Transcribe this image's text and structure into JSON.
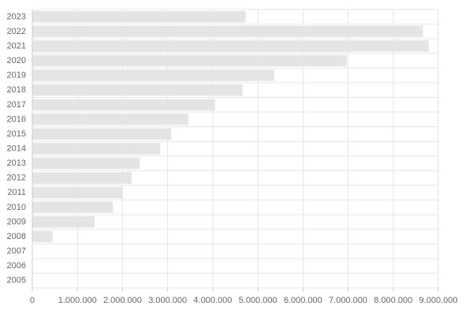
{
  "chart_data": {
    "type": "bar",
    "orientation": "horizontal",
    "categories": [
      "2023",
      "2022",
      "2021",
      "2020",
      "2019",
      "2018",
      "2017",
      "2016",
      "2015",
      "2014",
      "2013",
      "2012",
      "2011",
      "2010",
      "2009",
      "2008",
      "2007",
      "2006",
      "2005"
    ],
    "values": [
      4720000,
      8650000,
      8780000,
      6960000,
      5350000,
      4650000,
      4040000,
      3450000,
      3070000,
      2830000,
      2370000,
      2190000,
      1980000,
      1780000,
      1370000,
      440000,
      0,
      0,
      0
    ],
    "xlim": [
      0,
      9000000
    ],
    "x_ticks": [
      0,
      1000000,
      2000000,
      3000000,
      4000000,
      5000000,
      6000000,
      7000000,
      8000000,
      9000000
    ],
    "x_tick_labels": [
      "0",
      "1.000.000",
      "2.000.000",
      "3.000.000",
      "4.000.000",
      "5.000.000",
      "6.000.000",
      "7.000.000",
      "8.000.000",
      "9.000.000"
    ],
    "title": "",
    "xlabel": "",
    "ylabel": "",
    "grid": true,
    "legend": "none",
    "colors": {
      "bar": "#e4e4e4",
      "grid": "#e6e6e6",
      "axis": "#cccccc",
      "text": "#666666"
    }
  }
}
